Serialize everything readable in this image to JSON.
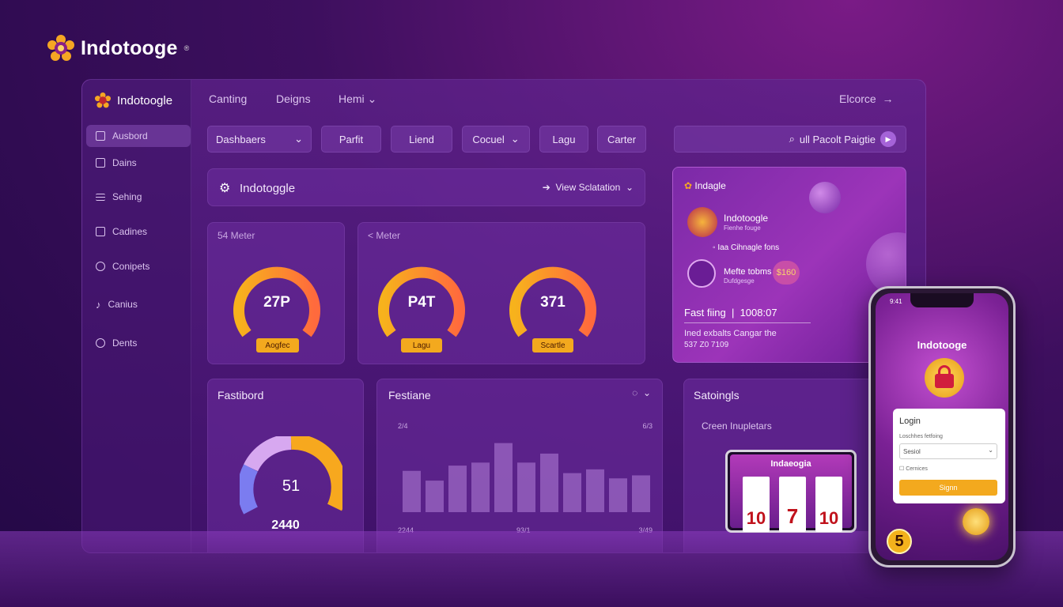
{
  "brand": {
    "name": "Indotooge",
    "mark": "®"
  },
  "sidebar": {
    "brand": "Indotoogle",
    "items": [
      {
        "label": "Ausbord",
        "icon": "doc-icon"
      },
      {
        "label": "Dains",
        "icon": "lock-icon"
      },
      {
        "label": "Sehing",
        "icon": "list-icon"
      },
      {
        "label": "Cadines",
        "icon": "card-icon"
      },
      {
        "label": "Conipets",
        "icon": "smile-icon"
      },
      {
        "label": "Canius",
        "icon": "music-icon"
      },
      {
        "label": "Dents",
        "icon": "user-icon"
      }
    ]
  },
  "topnav": {
    "items": [
      "Canting",
      "Deigns",
      "Hemi"
    ],
    "right": "Elcorce"
  },
  "toolbar": {
    "buttons": [
      "Dashbaers",
      "Parfit",
      "Liend",
      "Cocuel",
      "Lagu",
      "Carter"
    ],
    "search": "ull Pacolt Paigtie"
  },
  "header_card": {
    "title": "Indotoggle",
    "action": "View Sclatation"
  },
  "meters": {
    "left": {
      "title": "54 Meter",
      "value": "27P",
      "pill": "Aogfec"
    },
    "right": {
      "title": "< Meter",
      "gauges": [
        {
          "value": "P4T",
          "pill": "Lagu"
        },
        {
          "value": "371",
          "pill": "Scartle"
        }
      ]
    }
  },
  "fastboard": {
    "title": "Fastibord",
    "value": "51",
    "total": "2440"
  },
  "festiane": {
    "title": "Festiane",
    "y_top_left": "2/4",
    "y_top_right": "6/3",
    "x_labels": [
      "2244",
      "93/1",
      "3/49"
    ],
    "values": [
      55,
      42,
      62,
      66,
      92,
      66,
      78,
      52,
      57,
      45,
      49
    ]
  },
  "settings": {
    "title": "Satoingls",
    "subtitle": "Creen Inupletars"
  },
  "promo": {
    "brand": "Indagle",
    "row1_title": "Indotoogle",
    "row1_sub": "Fienhe fouge",
    "row2": "Iaa Cihnagle fons",
    "row3_title": "Mefte tobms",
    "row3_sub": "Dufdgesge",
    "coin": "$160",
    "fast_label": "Fast fiing",
    "fast_value": "1008:07",
    "desc": "Ined exbalts Cangar the",
    "desc2": "537 Z0 7109"
  },
  "tablet": {
    "title": "Indaeogia",
    "reels": [
      "10",
      "7",
      "10"
    ]
  },
  "phone": {
    "time": "9:41",
    "brand": "Indotooge",
    "login_title": "Login",
    "field_label": "Loschhes fetfoing",
    "field_value": "Sesiol",
    "checkbox": "Cernices",
    "signin": "Signn",
    "coin": "5"
  },
  "colors": {
    "accent": "#f3a91e",
    "purple": "#7b2aa7"
  }
}
